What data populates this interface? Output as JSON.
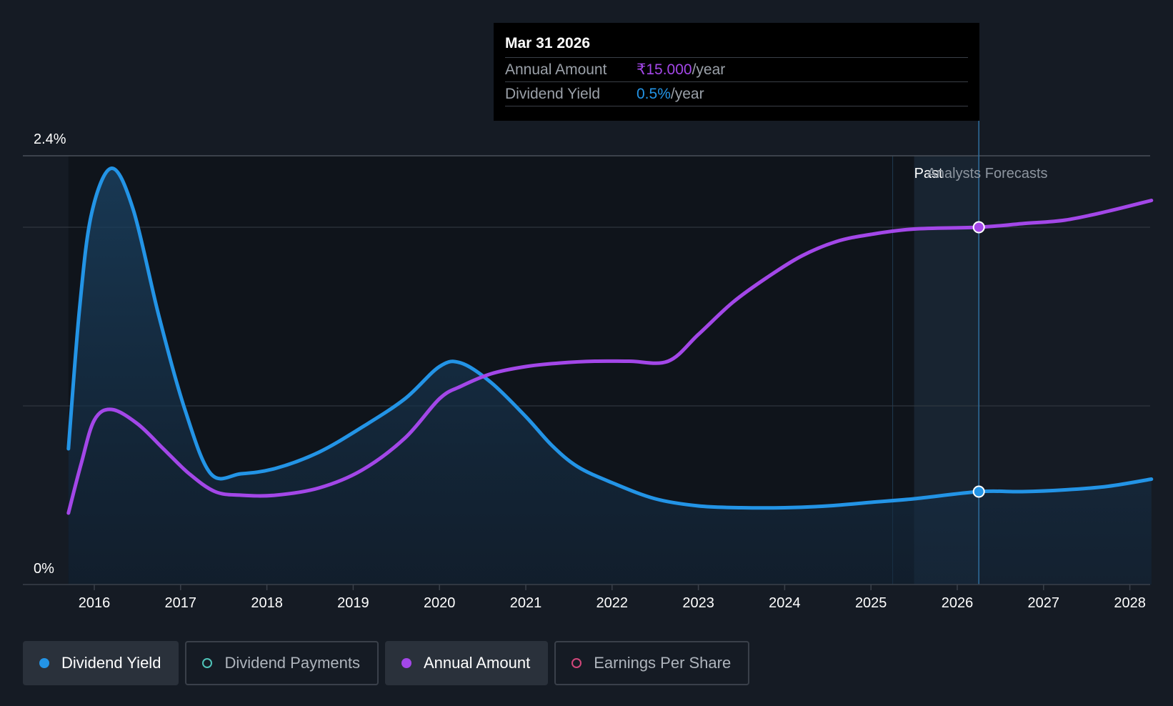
{
  "chart_data": {
    "type": "line",
    "x_ticks": [
      "2016",
      "2017",
      "2018",
      "2019",
      "2020",
      "2021",
      "2022",
      "2023",
      "2024",
      "2025",
      "2026",
      "2027",
      "2028"
    ],
    "y_axis_labels": {
      "top": "2.4%",
      "bottom": "0%"
    },
    "ylim": [
      0,
      2.4
    ],
    "grid": true,
    "past_label": "Past",
    "forecast_label": "Analysts Forecasts",
    "forecast_start": 2025.5,
    "series": [
      {
        "name": "Dividend Yield",
        "color": "#2394e6",
        "area": true,
        "points": [
          [
            2015.7,
            0.76
          ],
          [
            2015.83,
            1.55
          ],
          [
            2015.97,
            2.08
          ],
          [
            2016.2,
            2.33
          ],
          [
            2016.45,
            2.1
          ],
          [
            2016.75,
            1.5
          ],
          [
            2017.05,
            0.98
          ],
          [
            2017.35,
            0.62
          ],
          [
            2017.7,
            0.62
          ],
          [
            2018.1,
            0.65
          ],
          [
            2018.6,
            0.74
          ],
          [
            2019.1,
            0.88
          ],
          [
            2019.6,
            1.04
          ],
          [
            2020.0,
            1.22
          ],
          [
            2020.25,
            1.24
          ],
          [
            2020.6,
            1.13
          ],
          [
            2021.0,
            0.94
          ],
          [
            2021.3,
            0.78
          ],
          [
            2021.6,
            0.66
          ],
          [
            2022.0,
            0.57
          ],
          [
            2022.5,
            0.48
          ],
          [
            2023.0,
            0.44
          ],
          [
            2023.5,
            0.43
          ],
          [
            2024.0,
            0.43
          ],
          [
            2024.5,
            0.44
          ],
          [
            2025.0,
            0.46
          ],
          [
            2025.5,
            0.48
          ],
          [
            2026.25,
            0.52
          ],
          [
            2026.75,
            0.52
          ],
          [
            2027.25,
            0.53
          ],
          [
            2027.75,
            0.55
          ],
          [
            2028.25,
            0.59
          ]
        ]
      },
      {
        "name": "Annual Amount",
        "color": "#a347e8",
        "area": false,
        "points": [
          [
            2015.7,
            0.4
          ],
          [
            2015.85,
            0.68
          ],
          [
            2016.0,
            0.92
          ],
          [
            2016.2,
            0.98
          ],
          [
            2016.5,
            0.9
          ],
          [
            2016.8,
            0.76
          ],
          [
            2017.1,
            0.62
          ],
          [
            2017.4,
            0.52
          ],
          [
            2017.7,
            0.5
          ],
          [
            2018.1,
            0.5
          ],
          [
            2018.6,
            0.54
          ],
          [
            2019.1,
            0.64
          ],
          [
            2019.6,
            0.82
          ],
          [
            2020.0,
            1.04
          ],
          [
            2020.25,
            1.11
          ],
          [
            2020.6,
            1.18
          ],
          [
            2021.0,
            1.22
          ],
          [
            2021.4,
            1.24
          ],
          [
            2021.8,
            1.25
          ],
          [
            2022.2,
            1.25
          ],
          [
            2022.65,
            1.25
          ],
          [
            2023.0,
            1.4
          ],
          [
            2023.4,
            1.58
          ],
          [
            2023.8,
            1.72
          ],
          [
            2024.2,
            1.84
          ],
          [
            2024.6,
            1.92
          ],
          [
            2025.0,
            1.96
          ],
          [
            2025.5,
            1.99
          ],
          [
            2026.25,
            2.0
          ],
          [
            2026.75,
            2.02
          ],
          [
            2027.25,
            2.04
          ],
          [
            2027.75,
            2.09
          ],
          [
            2028.25,
            2.15
          ]
        ]
      }
    ],
    "highlight": {
      "x": 2026.25,
      "yield": 0.52,
      "amount": 2.0
    }
  },
  "tooltip": {
    "date": "Mar 31 2026",
    "rows": [
      {
        "label": "Annual Amount",
        "value": "₹15.000",
        "unit": "/year",
        "color": "#a347e8"
      },
      {
        "label": "Dividend Yield",
        "value": "0.5%",
        "unit": "/year",
        "color": "#2394e6"
      }
    ]
  },
  "legend": [
    {
      "label": "Dividend Yield",
      "color": "#2394e6",
      "active": true,
      "filled": true
    },
    {
      "label": "Dividend Payments",
      "color": "#4fc3b8",
      "active": false,
      "filled": false
    },
    {
      "label": "Annual Amount",
      "color": "#a347e8",
      "active": true,
      "filled": true
    },
    {
      "label": "Earnings Per Share",
      "color": "#d1477a",
      "active": false,
      "filled": false
    }
  ]
}
